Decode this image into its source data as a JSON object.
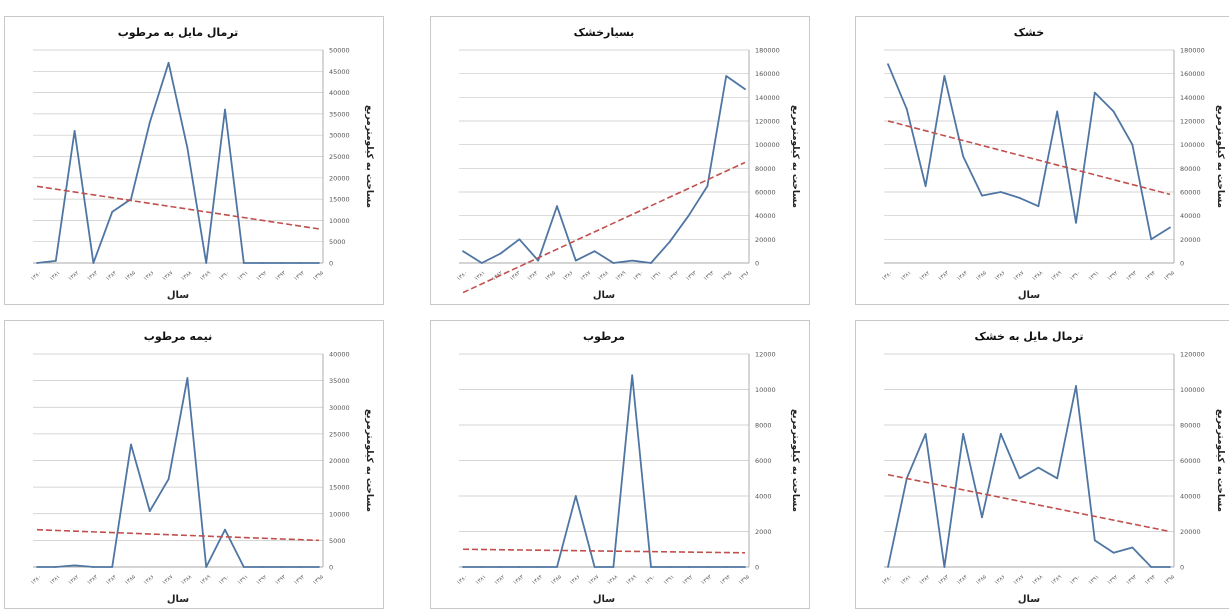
{
  "chart_data": [
    {
      "type": "line",
      "title": "ترمال مایل به مرطوب",
      "xlabel": "سال",
      "ylabel": "مساحت به کیلومترمربع",
      "ylim": [
        0,
        50000
      ],
      "yticks": [
        0,
        5000,
        10000,
        15000,
        20000,
        25000,
        30000,
        35000,
        40000,
        45000,
        50000
      ],
      "xtick_labels": [
        "۱۳۸۰",
        "۱۳۸۱",
        "۱۳۸۲",
        "۱۳۸۳",
        "۱۳۸۴",
        "۱۳۸۵",
        "۱۳۸۶",
        "۱۳۸۷",
        "۱۳۸۸",
        "۱۳۸۹",
        "۱۳۹۰",
        "۱۳۹۱",
        "۱۳۹۲",
        "۱۳۹۳",
        "۱۳۹۴",
        "۱۳۹۵"
      ],
      "grid": true,
      "series": [
        {
          "values": [
            0,
            500,
            31000,
            0,
            12000,
            15000,
            33000,
            47000,
            27000,
            0,
            36000,
            0,
            0,
            0,
            0,
            0
          ],
          "color": "#4F76A3",
          "style": "solid"
        },
        {
          "values": [
            18000,
            8000
          ],
          "color": "#C0504D",
          "style": "dashed",
          "trend": true
        }
      ]
    },
    {
      "type": "line",
      "title": "بسیارخشک",
      "xlabel": "سال",
      "ylabel": "مساحت به کیلومترمربع",
      "ylim": [
        0,
        180000
      ],
      "yticks": [
        0,
        20000,
        40000,
        60000,
        80000,
        100000,
        120000,
        140000,
        160000,
        180000
      ],
      "xtick_labels": [
        "۱۳۸۰",
        "۱۳۸۱",
        "۱۳۸۲",
        "۱۳۸۳",
        "۱۳۸۴",
        "۱۳۸۵",
        "۱۳۸۶",
        "۱۳۸۷",
        "۱۳۸۸",
        "۱۳۸۹",
        "۱۳۹۰",
        "۱۳۹۱",
        "۱۳۹۲",
        "۱۳۹۳",
        "۱۳۹۴",
        "۱۳۹۵",
        "۱۳۹۶"
      ],
      "grid": true,
      "series": [
        {
          "values": [
            10000,
            0,
            8000,
            20000,
            2000,
            48000,
            2000,
            10000,
            0,
            2000,
            0,
            18000,
            40000,
            65000,
            158000,
            147000
          ],
          "color": "#4F76A3",
          "style": "solid"
        },
        {
          "values": [
            -25000,
            85000
          ],
          "color": "#C0504D",
          "style": "dashed",
          "trend": true
        }
      ]
    },
    {
      "type": "line",
      "title": "خشک",
      "xlabel": "سال",
      "ylabel": "مساحت به کیلومترمربع",
      "ylim": [
        0,
        180000
      ],
      "yticks": [
        0,
        20000,
        40000,
        60000,
        80000,
        100000,
        120000,
        140000,
        160000,
        180000
      ],
      "xtick_labels": [
        "۱۳۸۰",
        "۱۳۸۱",
        "۱۳۸۲",
        "۱۳۸۳",
        "۱۳۸۴",
        "۱۳۸۵",
        "۱۳۸۶",
        "۱۳۸۷",
        "۱۳۸۸",
        "۱۳۸۹",
        "۱۳۹۰",
        "۱۳۹۱",
        "۱۳۹۲",
        "۱۳۹۳",
        "۱۳۹۴",
        "۱۳۹۵"
      ],
      "grid": true,
      "series": [
        {
          "values": [
            168000,
            130000,
            65000,
            158000,
            90000,
            57000,
            60000,
            55000,
            48000,
            128000,
            34000,
            144000,
            128000,
            100000,
            20000,
            30000
          ],
          "color": "#4F76A3",
          "style": "solid"
        },
        {
          "values": [
            120000,
            58000
          ],
          "color": "#C0504D",
          "style": "dashed",
          "trend": true
        }
      ]
    },
    {
      "type": "line",
      "title": "نیمه مرطوب",
      "xlabel": "سال",
      "ylabel": "مساحت به کیلومترمربع",
      "ylim": [
        0,
        40000
      ],
      "yticks": [
        0,
        5000,
        10000,
        15000,
        20000,
        25000,
        30000,
        35000,
        40000
      ],
      "xtick_labels": [
        "۱۳۸۰",
        "۱۳۸۱",
        "۱۳۸۲",
        "۱۳۸۳",
        "۱۳۸۴",
        "۱۳۸۵",
        "۱۳۸۶",
        "۱۳۸۷",
        "۱۳۸۸",
        "۱۳۸۹",
        "۱۳۹۰",
        "۱۳۹۱",
        "۱۳۹۲",
        "۱۳۹۳",
        "۱۳۹۴",
        "۱۳۹۵"
      ],
      "grid": true,
      "series": [
        {
          "values": [
            0,
            0,
            300,
            0,
            0,
            23000,
            10500,
            16500,
            35500,
            0,
            7000,
            0,
            0,
            0,
            0,
            0
          ],
          "color": "#4F76A3",
          "style": "solid"
        },
        {
          "values": [
            7000,
            5000
          ],
          "color": "#C0504D",
          "style": "dashed",
          "trend": true
        }
      ]
    },
    {
      "type": "line",
      "title": "مرطوب",
      "xlabel": "سال",
      "ylabel": "مساحت به کیلومترمربع",
      "ylim": [
        0,
        12000
      ],
      "yticks": [
        0,
        2000,
        4000,
        6000,
        8000,
        10000,
        12000
      ],
      "xtick_labels": [
        "۱۳۸۰",
        "۱۳۸۱",
        "۱۳۸۲",
        "۱۳۸۳",
        "۱۳۸۴",
        "۱۳۸۵",
        "۱۳۸۶",
        "۱۳۸۷",
        "۱۳۸۸",
        "۱۳۸۹",
        "۱۳۹۰",
        "۱۳۹۱",
        "۱۳۹۲",
        "۱۳۹۳",
        "۱۳۹۴",
        "۱۳۹۵"
      ],
      "grid": true,
      "series": [
        {
          "values": [
            0,
            0,
            0,
            0,
            0,
            0,
            4000,
            0,
            0,
            10800,
            0,
            0,
            0,
            0,
            0,
            0
          ],
          "color": "#4F76A3",
          "style": "solid"
        },
        {
          "values": [
            1000,
            800
          ],
          "color": "#C0504D",
          "style": "dashed",
          "trend": true
        }
      ]
    },
    {
      "type": "line",
      "title": "ترمال مایل به خشک",
      "xlabel": "سال",
      "ylabel": "مساحت به کیلومترمربع",
      "ylim": [
        0,
        120000
      ],
      "yticks": [
        0,
        20000,
        40000,
        60000,
        80000,
        100000,
        120000
      ],
      "xtick_labels": [
        "۱۳۸۰",
        "۱۳۸۱",
        "۱۳۸۲",
        "۱۳۸۳",
        "۱۳۸۴",
        "۱۳۸۵",
        "۱۳۸۶",
        "۱۳۸۷",
        "۱۳۸۸",
        "۱۳۸۹",
        "۱۳۹۰",
        "۱۳۹۱",
        "۱۳۹۲",
        "۱۳۹۳",
        "۱۳۹۴",
        "۱۳۹۵"
      ],
      "grid": true,
      "series": [
        {
          "values": [
            0,
            50000,
            75000,
            0,
            75000,
            28000,
            75000,
            50000,
            56000,
            50000,
            102000,
            15000,
            8000,
            11000,
            0,
            0
          ],
          "color": "#4F76A3",
          "style": "solid"
        },
        {
          "values": [
            52000,
            20000
          ],
          "color": "#C0504D",
          "style": "dashed",
          "trend": true
        }
      ]
    }
  ]
}
